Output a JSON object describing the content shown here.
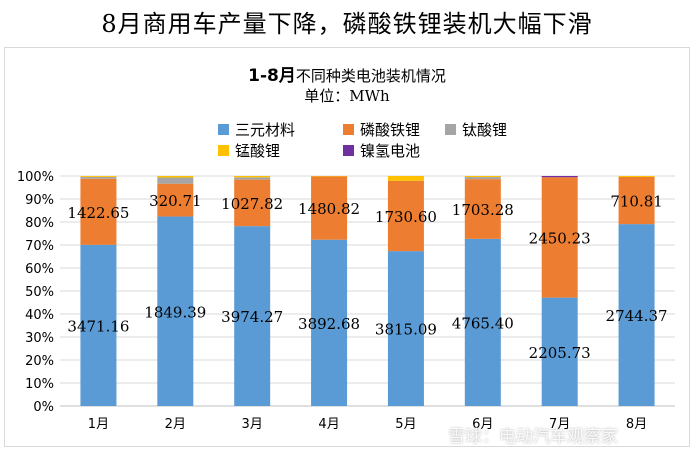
{
  "header": {
    "title": "8月商用车产量下降，磷酸铁锂装机大幅下滑"
  },
  "chart_data": {
    "type": "bar",
    "stacked": true,
    "normalized": true,
    "title_bold": "1-8月",
    "title_rest": "不同种类电池装机情况",
    "subtitle": "单位：MWh",
    "categories": [
      "1月",
      "2月",
      "3月",
      "4月",
      "5月",
      "6月",
      "7月",
      "8月"
    ],
    "series": [
      {
        "name": "三元材料",
        "color": "#5b9bd5",
        "values": [
          3471.16,
          1849.39,
          3974.27,
          3892.68,
          3815.09,
          4765.4,
          2205.73,
          2744.37
        ],
        "labels": [
          "3471.16",
          "1849.39",
          "3974.27",
          "3892.68",
          "3815.09",
          "4765.40",
          "2205.73",
          "2744.37"
        ]
      },
      {
        "name": "磷酸铁锂",
        "color": "#ed7d31",
        "values": [
          1422.65,
          320.71,
          1027.82,
          1480.82,
          1730.6,
          1703.28,
          2450.23,
          710.81
        ],
        "labels": [
          "1422.65",
          "320.71",
          "1027.82",
          "1480.82",
          "1730.60",
          "1703.28",
          "2450.23",
          "710.81"
        ]
      },
      {
        "name": "钛酸锂",
        "color": "#a5a5a5",
        "values": [
          40,
          60,
          50,
          0,
          0,
          60,
          0,
          0
        ]
      },
      {
        "name": "锰酸锂",
        "color": "#ffc000",
        "values": [
          20,
          15,
          30,
          10,
          120,
          30,
          0,
          15
        ]
      },
      {
        "name": "镍氢电池",
        "color": "#7030a0",
        "values": [
          0,
          0,
          0,
          0,
          0,
          0,
          25,
          0
        ]
      }
    ],
    "ytick_labels": [
      "0%",
      "10%",
      "20%",
      "30%",
      "40%",
      "50%",
      "60%",
      "70%",
      "80%",
      "90%",
      "100%"
    ],
    "ylim": [
      0,
      100
    ],
    "grid": true,
    "legend_position": "top"
  },
  "watermark": "雪球：电动汽车观察家"
}
